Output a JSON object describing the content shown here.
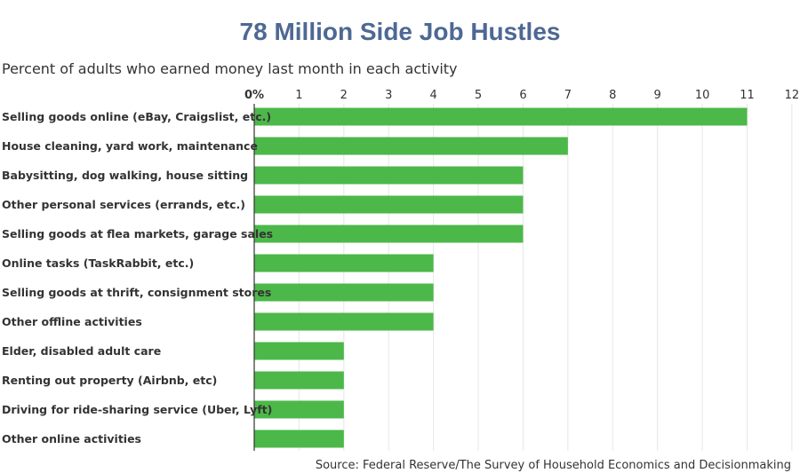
{
  "chart_data": {
    "type": "bar",
    "orientation": "horizontal",
    "title": "78 Million Side Job Hustles",
    "subtitle": "Percent of adults who earned money last month in each activity",
    "source": "Source: Federal Reserve/The Survey of Household Economics and Decisionmaking",
    "categories": [
      "Selling goods online (eBay, Craigslist, etc.)",
      "House cleaning, yard work, maintenance",
      "Babysitting, dog walking, house sitting",
      "Other personal services (errands, etc.)",
      "Selling goods at flea markets, garage sales",
      "Online tasks (TaskRabbit, etc.)",
      "Selling goods at thrift, consignment stores",
      "Other offline activities",
      "Elder, disabled adult care",
      "Renting out property (Airbnb, etc)",
      "Driving for ride-sharing service (Uber, Lyft)",
      "Other online activities"
    ],
    "values": [
      11,
      7,
      6,
      6,
      6,
      4,
      4,
      4,
      2,
      2,
      2,
      2
    ],
    "xlim": [
      0,
      12
    ],
    "xticks": [
      "0%",
      "1",
      "2",
      "3",
      "4",
      "5",
      "6",
      "7",
      "8",
      "9",
      "10",
      "11",
      "12"
    ],
    "axis_position": "top",
    "grid": true,
    "bar_color": "#4cb849"
  }
}
